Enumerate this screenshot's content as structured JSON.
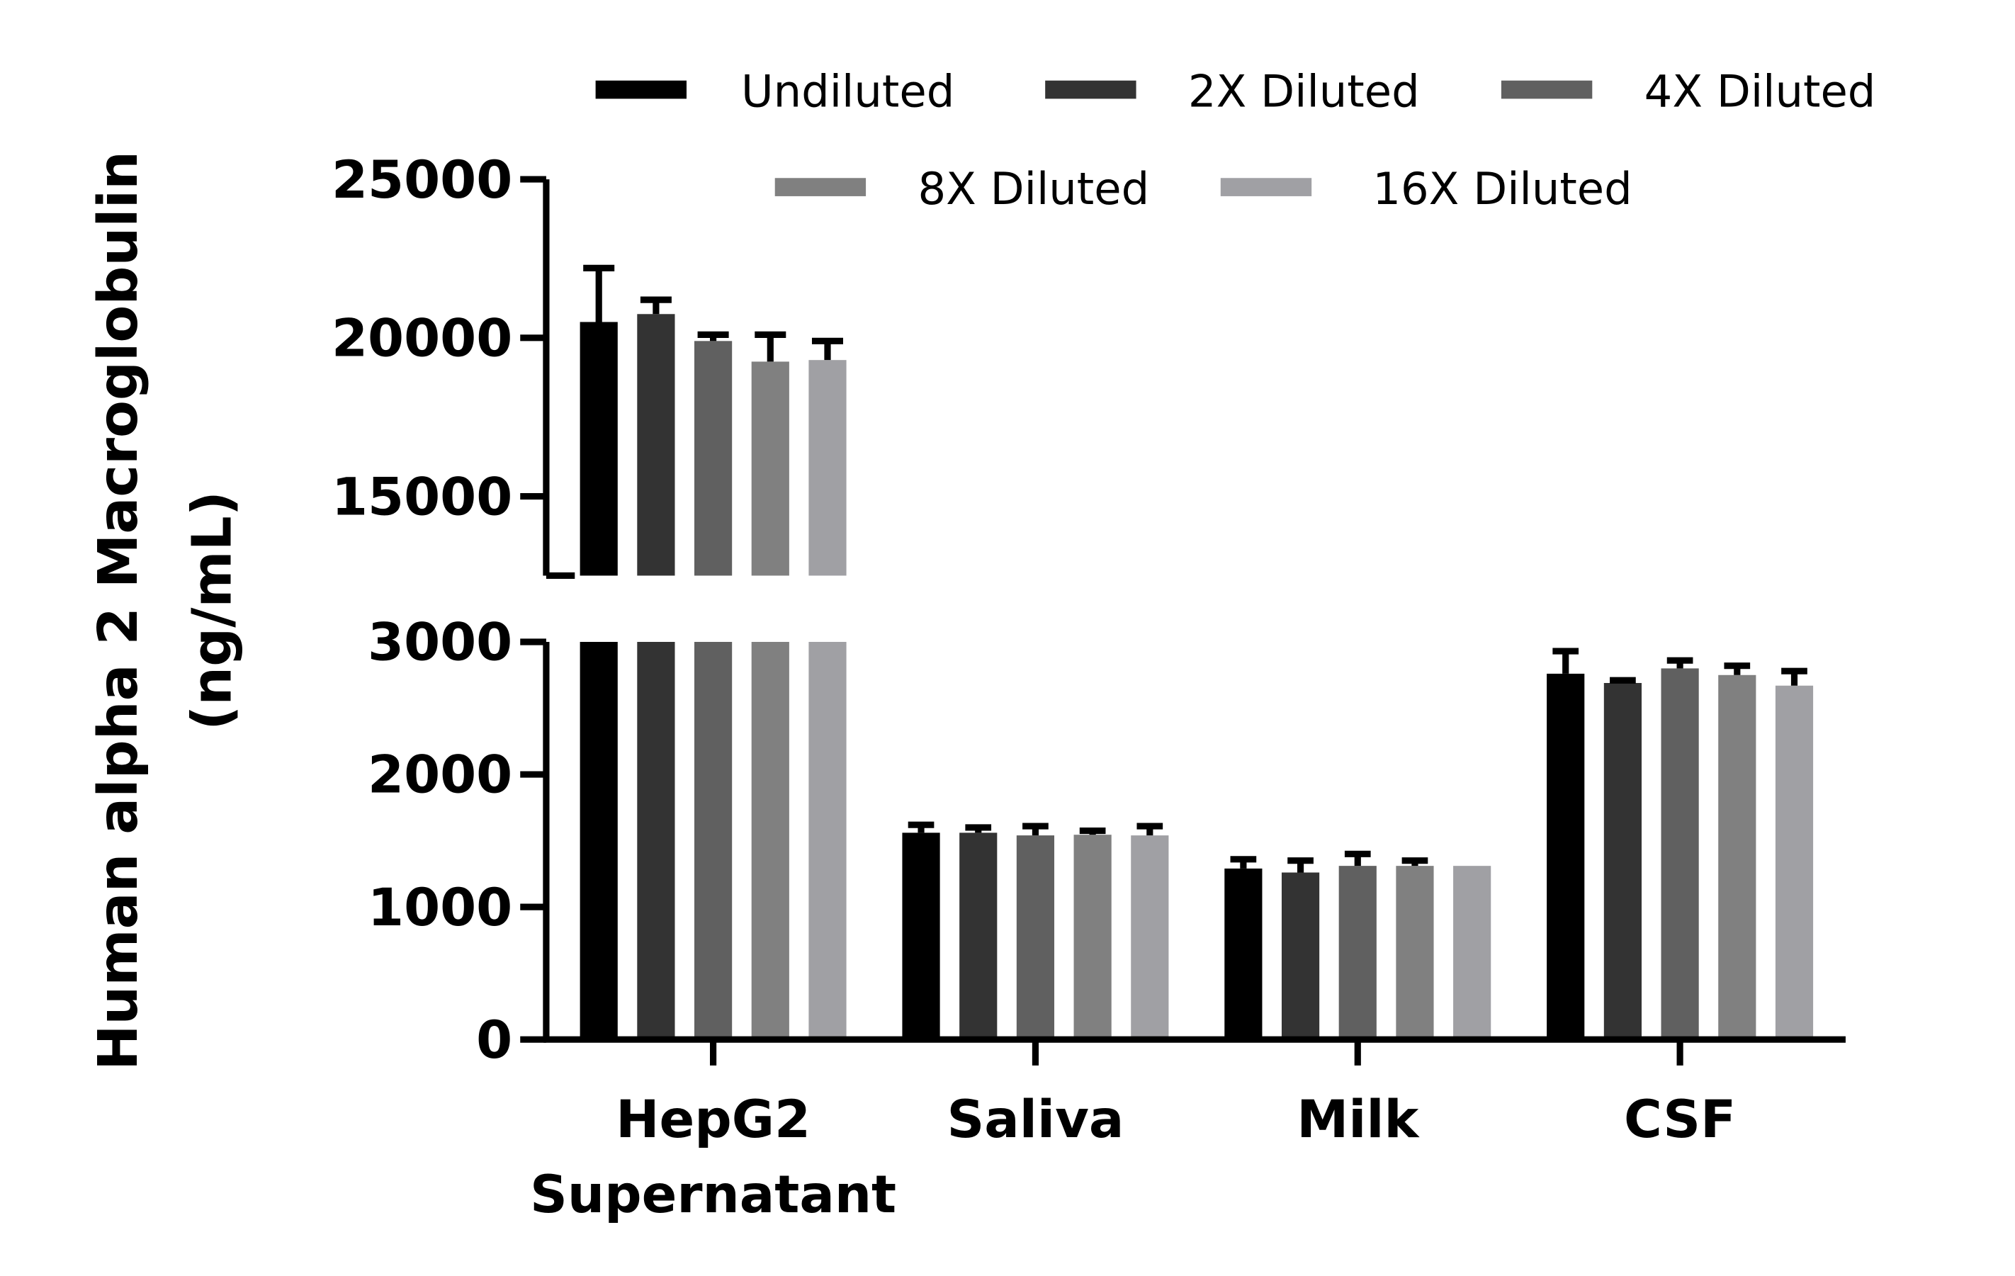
{
  "chart_data": {
    "type": "bar",
    "ylabel": [
      "Human alpha 2 Macroglobulin",
      "(ng/mL)"
    ],
    "categories": [
      [
        "HepG2",
        "Supernatant"
      ],
      [
        "Saliva"
      ],
      [
        "Milk"
      ],
      [
        "CSF"
      ]
    ],
    "y_axis_broken": true,
    "ylim_lower": [
      0,
      3000
    ],
    "yticks_lower": [
      "0",
      "1000",
      "2000",
      "3000"
    ],
    "ylim_upper": [
      12500,
      25000
    ],
    "yticks_upper": [
      "15000",
      "20000",
      "25000"
    ],
    "legend_placement": "top",
    "error_bars": "upper SD",
    "series": [
      {
        "name": "Undiluted",
        "color": "#000000",
        "values": [
          20500,
          1560,
          1290,
          2760
        ],
        "errors": [
          1700,
          60,
          70,
          170
        ]
      },
      {
        "name": "2X Diluted",
        "color": "#333333",
        "values": [
          20750,
          1560,
          1260,
          2690
        ],
        "errors": [
          450,
          40,
          90,
          20
        ]
      },
      {
        "name": "4X Diluted",
        "color": "#606060",
        "values": [
          19900,
          1540,
          1310,
          2800
        ],
        "errors": [
          200,
          70,
          90,
          60
        ]
      },
      {
        "name": "8X Diluted",
        "color": "#808080",
        "values": [
          19250,
          1545,
          1310,
          2750
        ],
        "errors": [
          850,
          30,
          40,
          70
        ]
      },
      {
        "name": "16X Diluted",
        "color": "#a0a0a4",
        "values": [
          19300,
          1540,
          1310,
          2670
        ],
        "errors": [
          600,
          70,
          0,
          110
        ]
      }
    ]
  }
}
